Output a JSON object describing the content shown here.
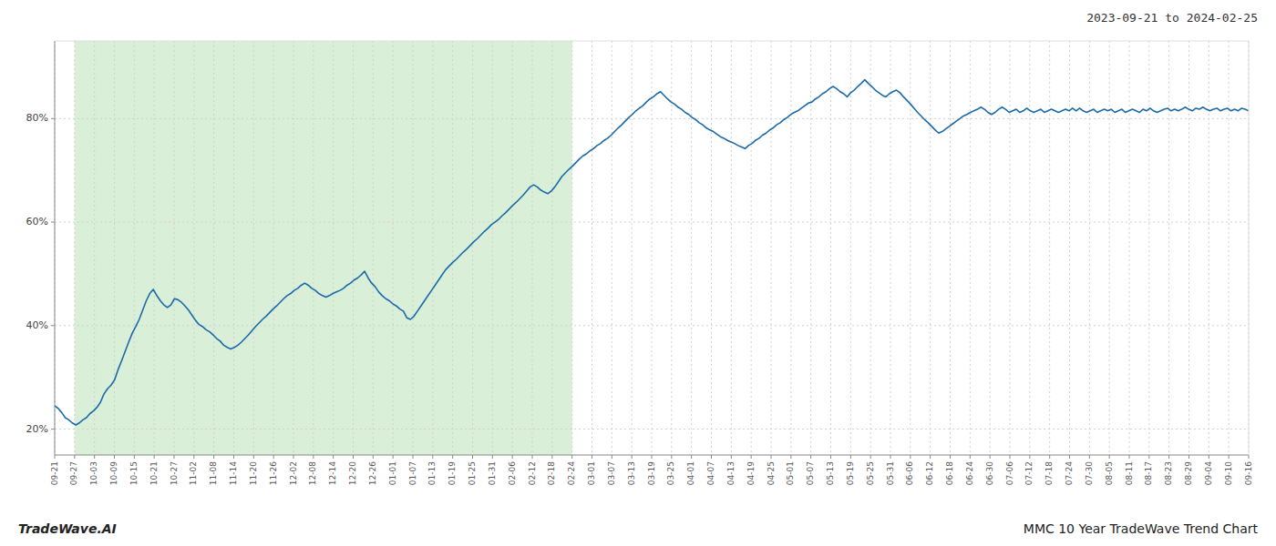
{
  "chart_data": {
    "type": "line",
    "title": "MMC 10 Year TradeWave Trend Chart",
    "subtitle": "2023-09-21 to 2024-02-25",
    "annotations": [
      "TradeWave.AI"
    ],
    "color": "#1a6aaa",
    "grid": true,
    "xlim": [
      0,
      60
    ],
    "xticks": [
      {
        "value": 0,
        "label": "09-21"
      },
      {
        "value": 1,
        "label": "09-27"
      },
      {
        "value": 2,
        "label": "10-03"
      },
      {
        "value": 3,
        "label": "10-09"
      },
      {
        "value": 4,
        "label": "10-15"
      },
      {
        "value": 5,
        "label": "10-21"
      },
      {
        "value": 6,
        "label": "10-27"
      },
      {
        "value": 7,
        "label": "11-02"
      },
      {
        "value": 8,
        "label": "11-08"
      },
      {
        "value": 9,
        "label": "11-14"
      },
      {
        "value": 10,
        "label": "11-20"
      },
      {
        "value": 11,
        "label": "11-26"
      },
      {
        "value": 12,
        "label": "12-02"
      },
      {
        "value": 13,
        "label": "12-08"
      },
      {
        "value": 14,
        "label": "12-14"
      },
      {
        "value": 15,
        "label": "12-20"
      },
      {
        "value": 16,
        "label": "12-26"
      },
      {
        "value": 17,
        "label": "01-01"
      },
      {
        "value": 18,
        "label": "01-07"
      },
      {
        "value": 19,
        "label": "01-13"
      },
      {
        "value": 20,
        "label": "01-19"
      },
      {
        "value": 21,
        "label": "01-25"
      },
      {
        "value": 22,
        "label": "01-31"
      },
      {
        "value": 23,
        "label": "02-06"
      },
      {
        "value": 24,
        "label": "02-12"
      },
      {
        "value": 25,
        "label": "02-18"
      },
      {
        "value": 26,
        "label": "02-24"
      },
      {
        "value": 27,
        "label": "03-01"
      },
      {
        "value": 28,
        "label": "03-07"
      },
      {
        "value": 29,
        "label": "03-13"
      },
      {
        "value": 30,
        "label": "03-19"
      },
      {
        "value": 31,
        "label": "03-25"
      },
      {
        "value": 32,
        "label": "04-01"
      },
      {
        "value": 33,
        "label": "04-07"
      },
      {
        "value": 34,
        "label": "04-13"
      },
      {
        "value": 35,
        "label": "04-19"
      },
      {
        "value": 36,
        "label": "04-25"
      },
      {
        "value": 37,
        "label": "05-01"
      },
      {
        "value": 38,
        "label": "05-07"
      },
      {
        "value": 39,
        "label": "05-13"
      },
      {
        "value": 40,
        "label": "05-19"
      },
      {
        "value": 41,
        "label": "05-25"
      },
      {
        "value": 42,
        "label": "05-31"
      },
      {
        "value": 43,
        "label": "06-06"
      },
      {
        "value": 44,
        "label": "06-12"
      },
      {
        "value": 45,
        "label": "06-18"
      },
      {
        "value": 46,
        "label": "06-24"
      },
      {
        "value": 47,
        "label": "06-30"
      },
      {
        "value": 48,
        "label": "07-06"
      },
      {
        "value": 49,
        "label": "07-12"
      },
      {
        "value": 50,
        "label": "07-18"
      },
      {
        "value": 51,
        "label": "07-24"
      },
      {
        "value": 52,
        "label": "07-30"
      },
      {
        "value": 53,
        "label": "08-05"
      },
      {
        "value": 54,
        "label": "08-11"
      },
      {
        "value": 55,
        "label": "08-17"
      },
      {
        "value": 56,
        "label": "08-23"
      },
      {
        "value": 57,
        "label": "08-29"
      },
      {
        "value": 58,
        "label": "09-04"
      },
      {
        "value": 59,
        "label": "09-10"
      },
      {
        "value": 60,
        "label": "09-16"
      }
    ],
    "ylim": [
      0.15,
      0.95
    ],
    "yticks": [
      {
        "value": 0.2,
        "label": "20%"
      },
      {
        "value": 0.4,
        "label": "40%"
      },
      {
        "value": 0.6,
        "label": "60%"
      },
      {
        "value": 0.8,
        "label": "80%"
      }
    ],
    "span": {
      "start": 1,
      "end": 26,
      "color": "#d4ecd0"
    },
    "values": [
      0.245,
      0.24,
      0.232,
      0.222,
      0.218,
      0.212,
      0.208,
      0.212,
      0.218,
      0.222,
      0.23,
      0.235,
      0.242,
      0.252,
      0.268,
      0.278,
      0.285,
      0.295,
      0.315,
      0.332,
      0.35,
      0.368,
      0.385,
      0.398,
      0.412,
      0.43,
      0.448,
      0.462,
      0.47,
      0.458,
      0.448,
      0.44,
      0.435,
      0.44,
      0.452,
      0.45,
      0.445,
      0.438,
      0.43,
      0.42,
      0.41,
      0.402,
      0.398,
      0.392,
      0.388,
      0.382,
      0.375,
      0.37,
      0.362,
      0.358,
      0.355,
      0.358,
      0.362,
      0.368,
      0.375,
      0.382,
      0.39,
      0.398,
      0.405,
      0.412,
      0.418,
      0.425,
      0.432,
      0.438,
      0.445,
      0.452,
      0.458,
      0.462,
      0.468,
      0.472,
      0.478,
      0.482,
      0.478,
      0.472,
      0.468,
      0.462,
      0.458,
      0.455,
      0.458,
      0.462,
      0.465,
      0.468,
      0.472,
      0.478,
      0.482,
      0.488,
      0.492,
      0.498,
      0.505,
      0.492,
      0.482,
      0.475,
      0.465,
      0.458,
      0.452,
      0.448,
      0.442,
      0.438,
      0.432,
      0.428,
      0.415,
      0.412,
      0.418,
      0.428,
      0.438,
      0.448,
      0.458,
      0.468,
      0.478,
      0.488,
      0.498,
      0.508,
      0.515,
      0.522,
      0.528,
      0.535,
      0.542,
      0.548,
      0.555,
      0.562,
      0.568,
      0.575,
      0.582,
      0.588,
      0.595,
      0.6,
      0.605,
      0.612,
      0.618,
      0.625,
      0.632,
      0.638,
      0.645,
      0.652,
      0.66,
      0.668,
      0.672,
      0.668,
      0.662,
      0.658,
      0.655,
      0.66,
      0.668,
      0.678,
      0.688,
      0.695,
      0.702,
      0.708,
      0.715,
      0.722,
      0.728,
      0.732,
      0.738,
      0.742,
      0.748,
      0.752,
      0.758,
      0.762,
      0.768,
      0.775,
      0.782,
      0.788,
      0.795,
      0.802,
      0.808,
      0.815,
      0.82,
      0.825,
      0.832,
      0.838,
      0.842,
      0.848,
      0.852,
      0.845,
      0.838,
      0.832,
      0.828,
      0.822,
      0.818,
      0.812,
      0.808,
      0.802,
      0.798,
      0.792,
      0.788,
      0.782,
      0.778,
      0.775,
      0.77,
      0.765,
      0.762,
      0.758,
      0.755,
      0.752,
      0.748,
      0.745,
      0.742,
      0.748,
      0.752,
      0.758,
      0.762,
      0.768,
      0.772,
      0.778,
      0.782,
      0.788,
      0.792,
      0.798,
      0.802,
      0.808,
      0.812,
      0.815,
      0.82,
      0.825,
      0.83,
      0.832,
      0.838,
      0.842,
      0.848,
      0.852,
      0.858,
      0.862,
      0.858,
      0.852,
      0.848,
      0.842,
      0.85,
      0.855,
      0.862,
      0.868,
      0.875,
      0.868,
      0.862,
      0.855,
      0.85,
      0.845,
      0.842,
      0.848,
      0.852,
      0.855,
      0.85,
      0.842,
      0.835,
      0.828,
      0.82,
      0.812,
      0.805,
      0.798,
      0.792,
      0.785,
      0.778,
      0.772,
      0.775,
      0.78,
      0.785,
      0.79,
      0.795,
      0.8,
      0.805,
      0.808,
      0.812,
      0.815,
      0.818,
      0.822,
      0.818,
      0.812,
      0.808,
      0.812,
      0.818,
      0.822,
      0.818,
      0.812,
      0.815,
      0.818,
      0.812,
      0.815,
      0.82,
      0.815,
      0.812,
      0.815,
      0.818,
      0.812,
      0.815,
      0.818,
      0.815,
      0.812,
      0.815,
      0.818,
      0.815,
      0.82,
      0.815,
      0.82,
      0.815,
      0.812,
      0.815,
      0.818,
      0.812,
      0.815,
      0.818,
      0.815,
      0.818,
      0.812,
      0.815,
      0.818,
      0.812,
      0.815,
      0.818,
      0.815,
      0.812,
      0.818,
      0.815,
      0.82,
      0.815,
      0.812,
      0.815,
      0.818,
      0.82,
      0.815,
      0.818,
      0.815,
      0.818,
      0.822,
      0.818,
      0.815,
      0.82,
      0.818,
      0.822,
      0.818,
      0.815,
      0.818,
      0.82,
      0.815,
      0.818,
      0.82,
      0.815,
      0.818,
      0.815,
      0.82,
      0.818,
      0.815
    ]
  }
}
